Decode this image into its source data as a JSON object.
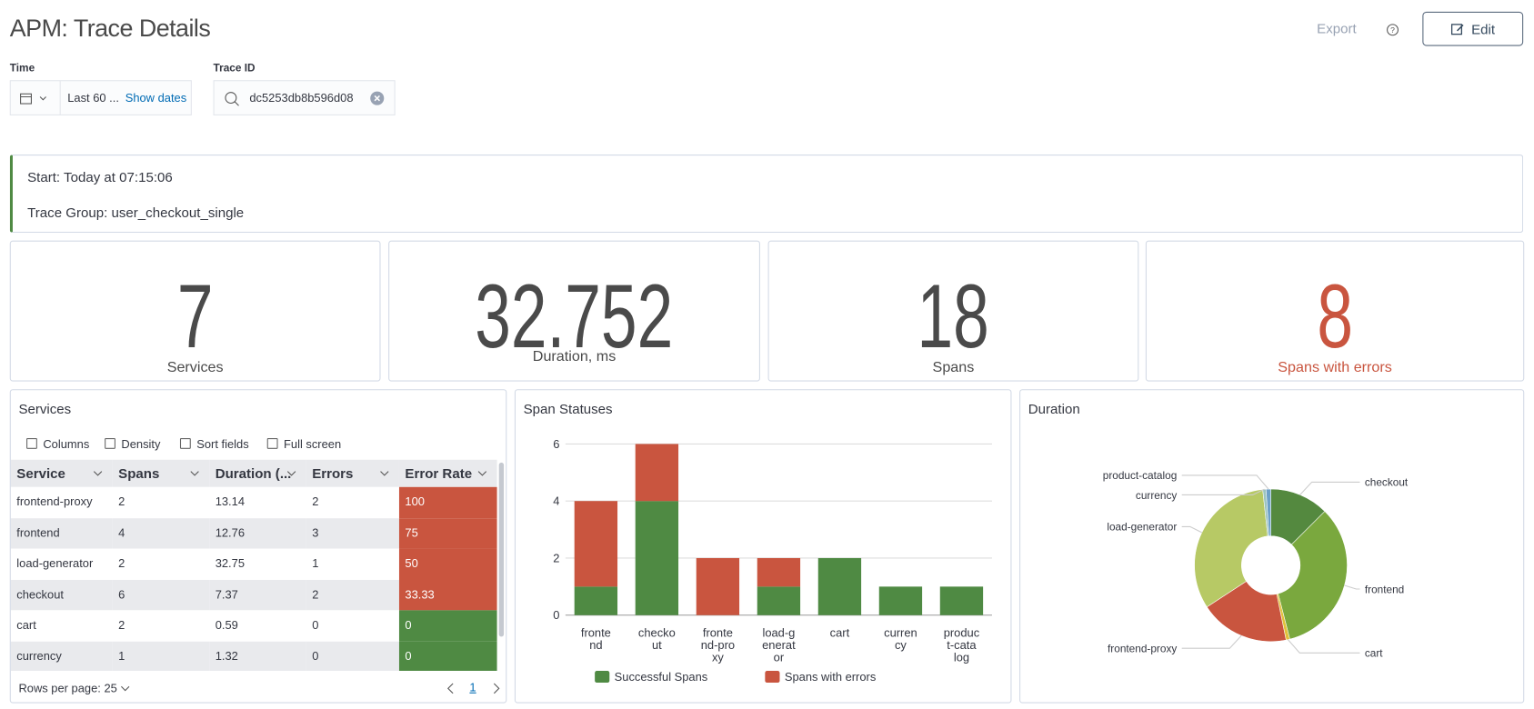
{
  "header": {
    "title": "APM: Trace Details",
    "export": "Export",
    "edit": "Edit"
  },
  "filters": {
    "time_label": "Time",
    "time_value": "Last 60 ...",
    "show_dates": "Show dates",
    "trace_label": "Trace ID",
    "trace_value": "dc5253db8b596d08"
  },
  "summary": {
    "start": "Start: Today at 07:15:06",
    "trace_group": "Trace Group: user_checkout_single"
  },
  "stats": [
    {
      "value": 7,
      "label": "Services",
      "color": "#4a4a4a"
    },
    {
      "value": 32.752,
      "label": "Duration, ms",
      "color": "#4a4a4a"
    },
    {
      "value": 18,
      "label": "Spans",
      "color": "#4a4a4a"
    },
    {
      "value": 8,
      "label": "Spans with errors",
      "color": "#c9553f"
    }
  ],
  "services": {
    "title": "Services",
    "toolbar": [
      "Columns",
      "Density",
      "Sort fields",
      "Full screen"
    ],
    "table": {
      "columns": [
        "Service",
        "Spans",
        "Duration (...",
        "Errors",
        "Error Rate"
      ],
      "rows": [
        [
          "frontend-proxy",
          2,
          13.14,
          2,
          100
        ],
        [
          "frontend",
          4,
          12.76,
          3,
          75
        ],
        [
          "load-generator",
          2,
          32.75,
          1,
          50
        ],
        [
          "checkout",
          6,
          7.37,
          2,
          33.33
        ],
        [
          "cart",
          2,
          0.59,
          0,
          0
        ],
        [
          "currency",
          1,
          1.32,
          0,
          0
        ]
      ],
      "error_color": "#c9553f",
      "ok_color": "#4f8a43"
    },
    "rows_per_page": "Rows per page: 25",
    "page": 1
  },
  "chart_data": [
    {
      "type": "bar",
      "stacked": true,
      "title": "Span Statuses",
      "categories": [
        "frontend",
        "checkout",
        "frontend-proxy",
        "load-generator",
        "cart",
        "currency",
        "product-catalog"
      ],
      "series": [
        {
          "name": "Successful Spans",
          "color": "#4f8a43",
          "values": [
            1,
            4,
            0,
            1,
            2,
            1,
            1
          ]
        },
        {
          "name": "Spans with errors",
          "color": "#c9553f",
          "values": [
            3,
            2,
            2,
            1,
            0,
            0,
            0
          ]
        }
      ],
      "ylim": [
        0,
        6
      ],
      "yticks": [
        0,
        2,
        4,
        6
      ],
      "grid": true
    },
    {
      "type": "pie",
      "donut": true,
      "title": "Duration",
      "categories": [
        "checkout",
        "frontend",
        "cart",
        "frontend-proxy",
        "load-generator",
        "currency",
        "product-catalog"
      ],
      "values": [
        12.5,
        33.5,
        0.8,
        19,
        32.5,
        0.7,
        1.0
      ],
      "colors": [
        "#54893f",
        "#7aa83e",
        "#e0c23a",
        "#c9553f",
        "#b7c965",
        "#9cc4bf",
        "#6ca0c8"
      ]
    }
  ]
}
